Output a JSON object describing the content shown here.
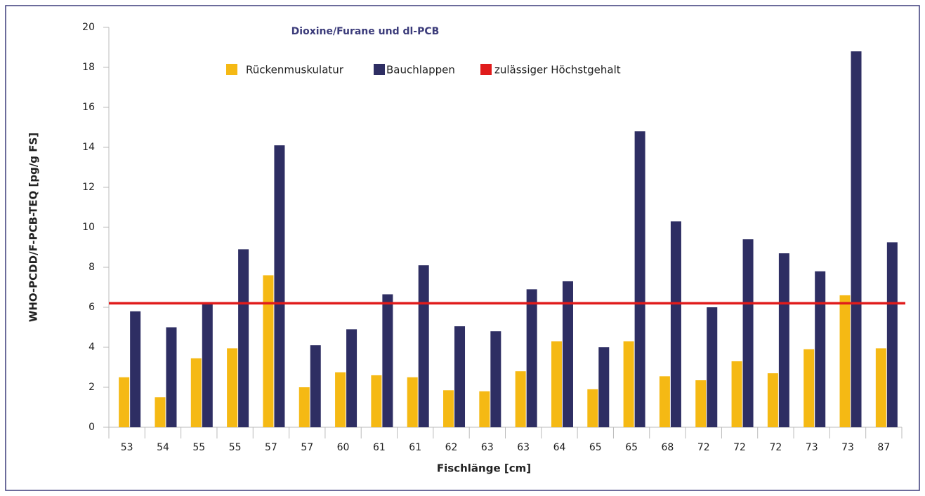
{
  "chart_data": {
    "type": "bar",
    "title": "Dioxine/Furane und dl-PCB",
    "x_label": "Fischlänge [cm]",
    "y_label": "WHO-PCDD/F-PCB-TEQ [pg/g FS]",
    "categories": [
      "53",
      "54",
      "55",
      "55",
      "57",
      "57",
      "60",
      "61",
      "61",
      "62",
      "63",
      "63",
      "64",
      "65",
      "65",
      "68",
      "72",
      "72",
      "72",
      "73",
      "73",
      "87"
    ],
    "series": [
      {
        "name": "Rückenmuskulatur",
        "color": "#f5b914",
        "values": [
          2.5,
          1.5,
          3.45,
          3.95,
          7.6,
          2.0,
          2.75,
          2.6,
          2.5,
          1.85,
          1.8,
          2.8,
          4.3,
          1.9,
          4.3,
          2.55,
          2.35,
          3.3,
          2.7,
          3.9,
          6.6,
          3.95
        ]
      },
      {
        "name": "Bauchlappen",
        "color": "#2e2e63",
        "values": [
          5.8,
          5.0,
          6.2,
          8.9,
          14.1,
          4.1,
          4.9,
          6.65,
          8.1,
          5.05,
          4.8,
          6.9,
          7.3,
          4.0,
          14.8,
          10.3,
          6.0,
          9.4,
          8.7,
          7.8,
          18.8,
          9.25
        ]
      }
    ],
    "reference_line": {
      "name": "zulässiger Höchstgehalt",
      "color": "#e01b1b",
      "value": 6.2
    },
    "ylim": [
      0,
      20
    ],
    "yticks": [
      0,
      2,
      4,
      6,
      8,
      10,
      12,
      14,
      16,
      18,
      20
    ],
    "grid": false
  }
}
